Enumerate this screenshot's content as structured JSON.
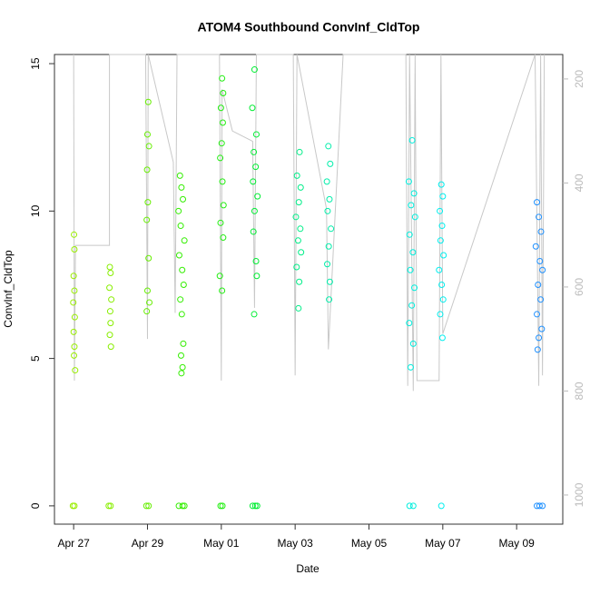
{
  "chart_data": {
    "type": "scatter",
    "title": "ATOM4 Southbound ConvInf_CldTop",
    "x_label": "Date",
    "y_label": "ConvInf_CldTop",
    "xlim": [
      -0.52,
      13.25
    ],
    "ylim": [
      -0.62,
      15.31
    ],
    "y2lim": [
      1056,
      153
    ],
    "xticks": [
      {
        "value": 0,
        "label": "Apr 27"
      },
      {
        "value": 2,
        "label": "Apr 29"
      },
      {
        "value": 4,
        "label": "May 01"
      },
      {
        "value": 6,
        "label": "May 03"
      },
      {
        "value": 8,
        "label": "May 05"
      },
      {
        "value": 10,
        "label": "May 07"
      },
      {
        "value": 12,
        "label": "May 09"
      }
    ],
    "yticks": [
      0,
      5,
      10,
      15
    ],
    "y2ticks": [
      200,
      400,
      600,
      800,
      1000
    ],
    "series": [
      {
        "color": "#99ee00",
        "x": [
          -0.02,
          0.02,
          0.01,
          0.02,
          0,
          -0.01,
          0.03,
          0,
          0.02,
          0.01,
          0.04,
          0.02
        ],
        "y": [
          0,
          0,
          9.2,
          8.7,
          7.8,
          6.9,
          6.4,
          5.9,
          5.4,
          5.1,
          4.6,
          7.3
        ]
      },
      {
        "color": "#88ee00",
        "x": [
          0.95,
          1.0,
          0.98,
          1.0,
          0.97,
          1.02,
          0.99,
          1.0,
          0.98,
          1.01
        ],
        "y": [
          0,
          0,
          8.1,
          7.9,
          7.4,
          7.0,
          6.6,
          6.2,
          5.8,
          5.4
        ]
      },
      {
        "color": "#66ee00",
        "x": [
          1.97,
          2.03,
          2.02,
          2.0,
          2.04,
          1.99,
          2.01,
          1.98,
          2.03,
          2.0,
          2.05,
          1.98
        ],
        "y": [
          0,
          0,
          13.7,
          12.6,
          12.2,
          11.4,
          10.3,
          9.7,
          8.4,
          7.3,
          6.9,
          6.6
        ]
      },
      {
        "color": "#33ee00",
        "x": [
          2.85,
          2.95,
          3.0,
          2.88,
          2.92,
          2.96,
          2.84,
          2.9,
          3.0,
          2.86,
          2.94,
          2.98,
          2.89,
          2.93,
          2.97,
          2.91,
          2.95,
          2.92
        ],
        "y": [
          0,
          0,
          0,
          11.2,
          10.8,
          10.4,
          10.0,
          9.5,
          9.0,
          8.5,
          8.0,
          7.5,
          7.0,
          6.5,
          5.5,
          5.1,
          4.7,
          4.5
        ]
      },
      {
        "color": "#22ee11",
        "x": [
          3.98,
          4.03,
          4.02,
          4.05,
          3.99,
          4.04,
          4.01,
          3.97,
          4.03,
          4.06,
          3.98,
          4.05,
          3.96,
          4.02
        ],
        "y": [
          0,
          0,
          14.5,
          14.0,
          13.5,
          13.0,
          12.3,
          11.8,
          11.0,
          10.2,
          9.6,
          9.1,
          7.8,
          7.3
        ]
      },
      {
        "color": "#00ee33",
        "x": [
          4.85,
          4.92,
          4.97,
          4.9,
          4.84,
          4.95,
          4.88,
          4.93,
          4.86,
          4.98,
          4.9,
          4.87,
          4.94,
          4.96,
          4.89
        ],
        "y": [
          0,
          0,
          0,
          14.8,
          13.5,
          12.6,
          12.0,
          11.5,
          11.0,
          10.5,
          10.0,
          9.3,
          8.3,
          7.8,
          6.5
        ]
      },
      {
        "color": "#00ee88",
        "x": [
          6.12,
          6.05,
          6.15,
          6.1,
          6.02,
          6.14,
          6.08,
          6.16,
          6.04,
          6.11,
          6.09
        ],
        "y": [
          12.0,
          11.2,
          10.8,
          10.3,
          9.8,
          9.4,
          9.0,
          8.6,
          8.1,
          7.6,
          6.7
        ]
      },
      {
        "color": "#00eeaa",
        "x": [
          6.9,
          6.95,
          6.86,
          6.93,
          6.88,
          6.97,
          6.91,
          6.87,
          6.94,
          6.92
        ],
        "y": [
          12.2,
          11.6,
          11.0,
          10.4,
          10.0,
          9.4,
          8.8,
          8.2,
          7.6,
          7.0
        ]
      },
      {
        "color": "#00eedd",
        "x": [
          9.1,
          9.2,
          9.17,
          9.08,
          9.22,
          9.14,
          9.25,
          9.1,
          9.19,
          9.12,
          9.23,
          9.16,
          9.09,
          9.2,
          9.13
        ],
        "y": [
          0,
          0,
          12.4,
          11.0,
          10.6,
          10.2,
          9.8,
          9.2,
          8.6,
          8.0,
          7.4,
          6.8,
          6.2,
          5.5,
          4.7
        ]
      },
      {
        "color": "#00eeee",
        "x": [
          9.96,
          9.96,
          10.0,
          9.92,
          9.98,
          9.94,
          10.02,
          9.9,
          9.97,
          10.01,
          9.93,
          9.99
        ],
        "y": [
          0,
          10.9,
          10.5,
          10.0,
          9.5,
          9.0,
          8.5,
          8.0,
          7.5,
          7.0,
          6.5,
          5.7
        ]
      },
      {
        "color": "#1e90ff",
        "x": [
          12.55,
          12.62,
          12.7,
          12.55,
          12.6,
          12.66,
          12.52,
          12.63,
          12.7,
          12.58,
          12.65,
          12.55,
          12.68,
          12.6,
          12.57
        ],
        "y": [
          0,
          0,
          0,
          10.3,
          9.8,
          9.3,
          8.8,
          8.3,
          8.0,
          7.5,
          7.0,
          6.5,
          6.0,
          5.7,
          5.3
        ]
      },
      {
        "type": "line",
        "axis": "y2",
        "color": "#c8c8c8",
        "x": [
          0,
          0.02,
          0.05,
          0.97,
          0.97,
          1.95,
          2.0,
          2.02,
          2.7,
          2.75,
          2.8,
          2.9,
          3.95,
          4.0,
          4.02,
          4.3,
          4.85,
          4.9,
          4.95,
          5.95,
          6.0,
          6.05,
          6.85,
          6.9,
          7.3,
          9.0,
          9.05,
          9.1,
          9.2,
          9.25,
          9.3,
          9.9,
          9.95,
          10.0,
          12.5,
          12.6,
          12.65,
          12.7,
          12.75
        ],
        "y": [
          153,
          780,
          520,
          520,
          153,
          153,
          700,
          153,
          360,
          650,
          153,
          153,
          153,
          780,
          220,
          300,
          320,
          640,
          153,
          153,
          770,
          153,
          450,
          720,
          153,
          153,
          790,
          153,
          800,
          153,
          780,
          780,
          153,
          690,
          153,
          790,
          153,
          770,
          153
        ]
      }
    ]
  }
}
